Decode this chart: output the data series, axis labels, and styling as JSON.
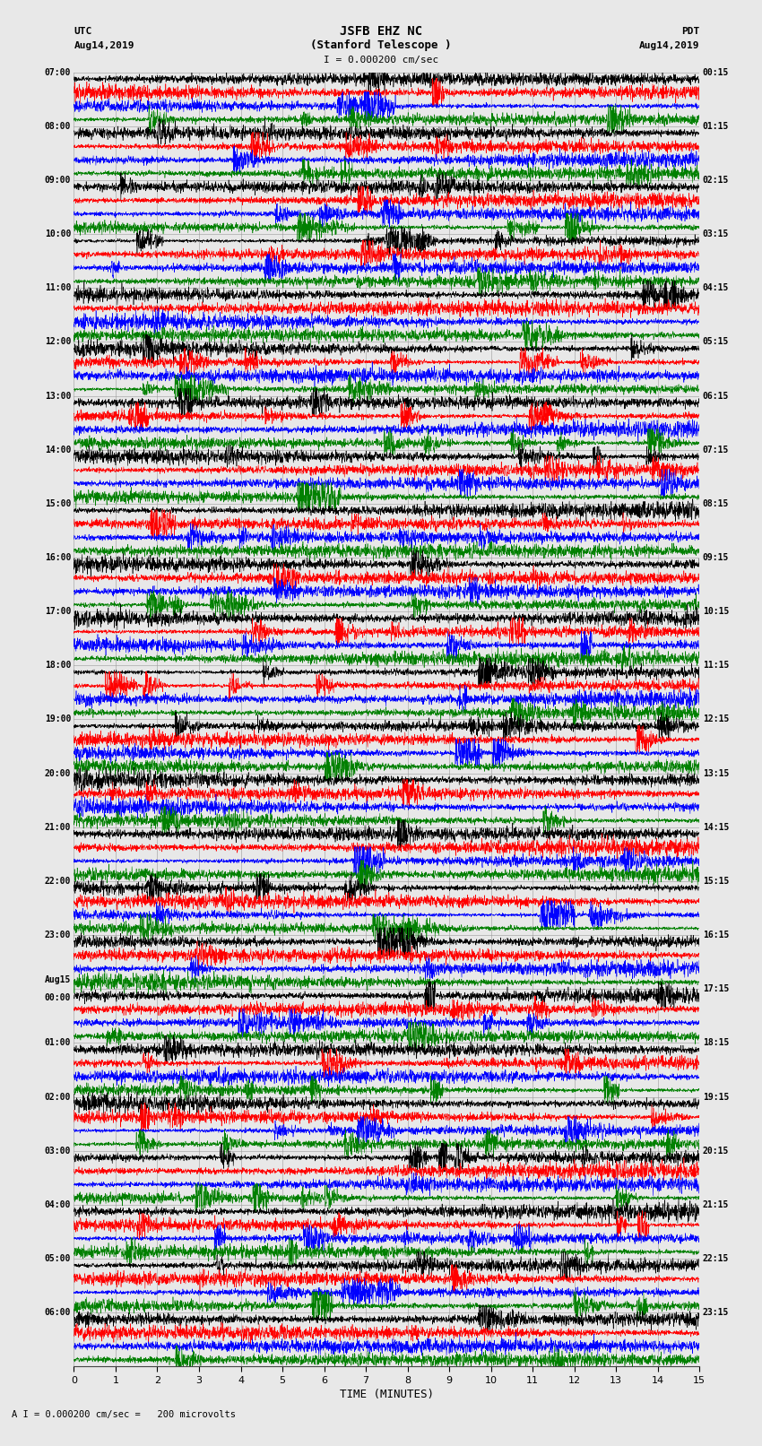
{
  "title_line1": "JSFB EHZ NC",
  "title_line2": "(Stanford Telescope )",
  "scale_label": "I = 0.000200 cm/sec",
  "bottom_label": "A I = 0.000200 cm/sec =   200 microvolts",
  "xlabel": "TIME (MINUTES)",
  "left_header_line1": "UTC",
  "left_header_line2": "Aug14,2019",
  "right_header_line1": "PDT",
  "right_header_line2": "Aug14,2019",
  "num_rows": 24,
  "traces_per_row": 4,
  "row_colors": [
    "black",
    "red",
    "blue",
    "green"
  ],
  "minutes_per_row": 15,
  "fig_width": 8.5,
  "fig_height": 16.13,
  "dpi": 100,
  "bg_color": "#e8e8e8",
  "trace_bg_color": "#e8e8e8",
  "grid_color": "#999999",
  "left_times_utc": [
    "07:00",
    "08:00",
    "09:00",
    "10:00",
    "11:00",
    "12:00",
    "13:00",
    "14:00",
    "15:00",
    "16:00",
    "17:00",
    "18:00",
    "19:00",
    "20:00",
    "21:00",
    "22:00",
    "23:00",
    "00:00",
    "01:00",
    "02:00",
    "03:00",
    "04:00",
    "05:00",
    "06:00"
  ],
  "aug15_row_index": 17,
  "right_times_pdt": [
    "00:15",
    "01:15",
    "02:15",
    "03:15",
    "04:15",
    "05:15",
    "06:15",
    "07:15",
    "08:15",
    "09:15",
    "10:15",
    "11:15",
    "12:15",
    "13:15",
    "14:15",
    "15:15",
    "16:15",
    "17:15",
    "18:15",
    "19:15",
    "20:15",
    "21:15",
    "22:15",
    "23:15"
  ],
  "activity_by_row": [
    0.18,
    0.18,
    0.2,
    0.22,
    0.25,
    0.28,
    0.35,
    0.4,
    0.45,
    0.5,
    0.55,
    0.58,
    0.62,
    0.65,
    0.68,
    0.7,
    0.68,
    0.65,
    0.6,
    0.55,
    0.5,
    0.45,
    0.4,
    0.35
  ]
}
